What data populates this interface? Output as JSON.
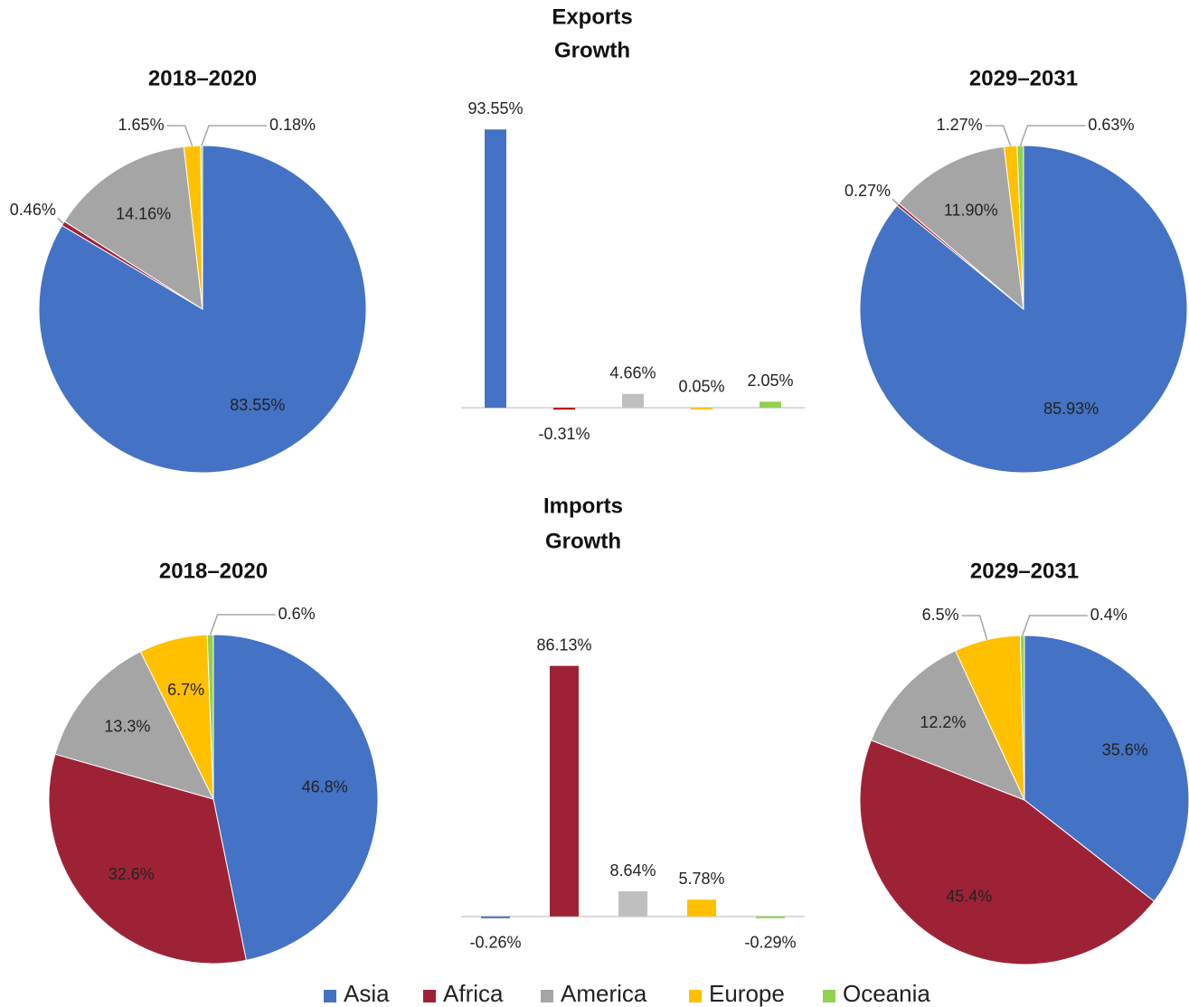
{
  "legend": {
    "labels": [
      "Asia",
      "Africa",
      "America",
      "Europe",
      "Oceania"
    ],
    "colors": [
      "#4472c4",
      "#9e2236",
      "#a5a5a5",
      "#ffc000",
      "#92d050"
    ]
  },
  "chart_data": [
    {
      "type": "pie",
      "title": "2018–2020",
      "values": [
        83.55,
        0.46,
        14.16,
        1.65,
        0.18
      ],
      "value_labels": [
        "83.55%",
        "0.46%",
        "14.16%",
        "1.65%",
        "0.18%"
      ],
      "colors": [
        "#4472c4",
        "#9e2236",
        "#a5a5a5",
        "#ffc000",
        "#92d050"
      ]
    },
    {
      "type": "bar",
      "title": [
        "Exports",
        "Growth"
      ],
      "values": [
        93.55,
        -0.31,
        4.66,
        0.05,
        2.05
      ],
      "value_labels": [
        "93.55%",
        "-0.31%",
        "4.66%",
        "0.05%",
        "2.05%"
      ],
      "colors": [
        "#4472c4",
        "#c00000",
        "#bfbfbf",
        "#ffc000",
        "#92d050"
      ],
      "ylim": [
        -10,
        100
      ]
    },
    {
      "type": "pie",
      "title": "2029–2031",
      "values": [
        85.93,
        0.27,
        11.9,
        1.27,
        0.63
      ],
      "value_labels": [
        "85.93%",
        "0.27%",
        "11.90%",
        "1.27%",
        "0.63%"
      ],
      "colors": [
        "#4472c4",
        "#9e2236",
        "#a5a5a5",
        "#ffc000",
        "#92d050"
      ]
    },
    {
      "type": "pie",
      "title": "2018–2020",
      "values": [
        46.8,
        32.6,
        13.3,
        6.7,
        0.6
      ],
      "value_labels": [
        "46.8%",
        "32.6%",
        "13.3%",
        "6.7%",
        "0.6%"
      ],
      "colors": [
        "#4472c4",
        "#9e2236",
        "#a5a5a5",
        "#ffc000",
        "#92d050"
      ]
    },
    {
      "type": "bar",
      "title": [
        "Imports",
        "Growth"
      ],
      "values": [
        -0.26,
        86.13,
        8.64,
        5.78,
        -0.29
      ],
      "value_labels": [
        "-0.26%",
        "86.13%",
        "8.64%",
        "5.78%",
        "-0.29%"
      ],
      "colors": [
        "#4472c4",
        "#9e2236",
        "#bfbfbf",
        "#ffc000",
        "#92d050"
      ],
      "ylim": [
        -10,
        100
      ]
    },
    {
      "type": "pie",
      "title": "2029–2031",
      "values": [
        35.6,
        45.4,
        12.2,
        6.5,
        0.4
      ],
      "value_labels": [
        "35.6%",
        "45.4%",
        "12.2%",
        "6.5%",
        "0.4%"
      ],
      "colors": [
        "#4472c4",
        "#9e2236",
        "#a5a5a5",
        "#ffc000",
        "#92d050"
      ]
    }
  ]
}
